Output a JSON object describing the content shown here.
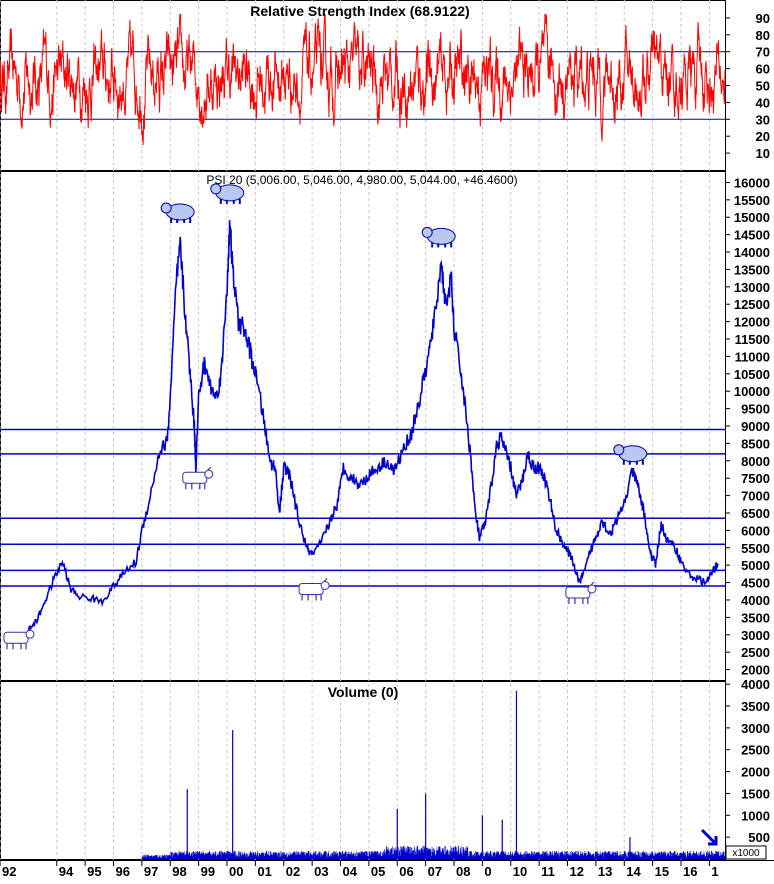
{
  "chart_data": [
    {
      "type": "line",
      "title": "Relative Strength Index (68.9122)",
      "y_ticks": [
        10,
        20,
        30,
        40,
        50,
        60,
        70,
        80,
        90
      ],
      "ylim": [
        0,
        100
      ],
      "reference_lines": [
        30,
        70
      ],
      "line_color": "#ff0000",
      "grid": "vertical dotted"
    },
    {
      "type": "line",
      "title": "PSI 20 (5,006.00, 5,046.00, 4,980.00, 5,044.00, +46.4600)",
      "y_ticks": [
        2000,
        2500,
        3000,
        3500,
        4000,
        4500,
        5000,
        5500,
        6000,
        6500,
        7000,
        7500,
        8000,
        8500,
        9000,
        9500,
        10000,
        10500,
        11000,
        11500,
        12000,
        12500,
        13000,
        13500,
        14000,
        14500,
        15000,
        15500,
        16000
      ],
      "ylim": [
        1700,
        16300
      ],
      "line_color": "#0000cc",
      "horizontal_levels": [
        8900,
        8200,
        6350,
        5600,
        4850,
        4400
      ],
      "series": [
        {
          "values": [
            [
              1993.0,
              3150
            ],
            [
              1993.3,
              3400
            ],
            [
              1993.6,
              4000
            ],
            [
              1993.9,
              4600
            ],
            [
              1994.2,
              5100
            ],
            [
              1994.5,
              4300
            ],
            [
              1994.8,
              4100
            ],
            [
              1995.2,
              4050
            ],
            [
              1995.6,
              3950
            ],
            [
              1996.0,
              4400
            ],
            [
              1996.4,
              4800
            ],
            [
              1996.8,
              5100
            ],
            [
              1997.0,
              6000
            ],
            [
              1997.3,
              7000
            ],
            [
              1997.6,
              8200
            ],
            [
              1997.9,
              8600
            ],
            [
              1998.0,
              9800
            ],
            [
              1998.2,
              13000
            ],
            [
              1998.35,
              14200
            ],
            [
              1998.5,
              12500
            ],
            [
              1998.7,
              10500
            ],
            [
              1998.85,
              9000
            ],
            [
              1998.9,
              7800
            ],
            [
              1999.0,
              9800
            ],
            [
              1999.2,
              10800
            ],
            [
              1999.4,
              10200
            ],
            [
              1999.6,
              9800
            ],
            [
              1999.8,
              10500
            ],
            [
              2000.0,
              13000
            ],
            [
              2000.1,
              14800
            ],
            [
              2000.2,
              13500
            ],
            [
              2000.4,
              12000
            ],
            [
              2000.6,
              11800
            ],
            [
              2000.8,
              11200
            ],
            [
              2001.0,
              10500
            ],
            [
              2001.3,
              9200
            ],
            [
              2001.5,
              8000
            ],
            [
              2001.7,
              7800
            ],
            [
              2001.85,
              6500
            ],
            [
              2002.0,
              7800
            ],
            [
              2002.2,
              7600
            ],
            [
              2002.5,
              6400
            ],
            [
              2002.8,
              5500
            ],
            [
              2003.0,
              5300
            ],
            [
              2003.3,
              5600
            ],
            [
              2003.6,
              6200
            ],
            [
              2003.9,
              6800
            ],
            [
              2004.1,
              7800
            ],
            [
              2004.4,
              7500
            ],
            [
              2004.7,
              7300
            ],
            [
              2005.0,
              7600
            ],
            [
              2005.3,
              7800
            ],
            [
              2005.6,
              8000
            ],
            [
              2005.9,
              7700
            ],
            [
              2006.2,
              8300
            ],
            [
              2006.5,
              8800
            ],
            [
              2006.8,
              9800
            ],
            [
              2007.1,
              11000
            ],
            [
              2007.3,
              12000
            ],
            [
              2007.55,
              13700
            ],
            [
              2007.7,
              12500
            ],
            [
              2007.9,
              13200
            ],
            [
              2008.0,
              11800
            ],
            [
              2008.2,
              10800
            ],
            [
              2008.4,
              9500
            ],
            [
              2008.6,
              8000
            ],
            [
              2008.75,
              6500
            ],
            [
              2008.9,
              5800
            ],
            [
              2009.1,
              6200
            ],
            [
              2009.3,
              7200
            ],
            [
              2009.5,
              8400
            ],
            [
              2009.65,
              8700
            ],
            [
              2009.8,
              8300
            ],
            [
              2010.0,
              7800
            ],
            [
              2010.2,
              7000
            ],
            [
              2010.4,
              7400
            ],
            [
              2010.6,
              8200
            ],
            [
              2010.8,
              7800
            ],
            [
              2011.0,
              7800
            ],
            [
              2011.2,
              7500
            ],
            [
              2011.4,
              6800
            ],
            [
              2011.6,
              6000
            ],
            [
              2011.8,
              5700
            ],
            [
              2012.0,
              5400
            ],
            [
              2012.2,
              5100
            ],
            [
              2012.4,
              4500
            ],
            [
              2012.6,
              4800
            ],
            [
              2012.8,
              5400
            ],
            [
              2013.0,
              5800
            ],
            [
              2013.2,
              6300
            ],
            [
              2013.5,
              5900
            ],
            [
              2013.7,
              6200
            ],
            [
              2014.0,
              6800
            ],
            [
              2014.3,
              7700
            ],
            [
              2014.5,
              7200
            ],
            [
              2014.7,
              6500
            ],
            [
              2014.9,
              5400
            ],
            [
              2015.1,
              5000
            ],
            [
              2015.3,
              6200
            ],
            [
              2015.5,
              5700
            ],
            [
              2015.8,
              5500
            ],
            [
              2016.0,
              5100
            ],
            [
              2016.3,
              4700
            ],
            [
              2016.6,
              4600
            ],
            [
              2016.9,
              4500
            ],
            [
              2017.1,
              4800
            ],
            [
              2017.3,
              5044
            ]
          ]
        }
      ],
      "markers": [
        {
          "icon": "bull-icon",
          "x": 1992.6,
          "y": 2900
        },
        {
          "icon": "bear-icon",
          "x": 1998.35,
          "y": 15150
        },
        {
          "icon": "bear-icon",
          "x": 2000.1,
          "y": 15700
        },
        {
          "icon": "bull-icon",
          "x": 1998.9,
          "y": 7500
        },
        {
          "icon": "bull-icon",
          "x": 2003.0,
          "y": 4300
        },
        {
          "icon": "bear-icon",
          "x": 2007.55,
          "y": 14450
        },
        {
          "icon": "bull-icon",
          "x": 2012.4,
          "y": 4200
        },
        {
          "icon": "bear-icon",
          "x": 2014.3,
          "y": 8200
        }
      ]
    },
    {
      "type": "bar",
      "title": "Volume (0)",
      "y_ticks": [
        500,
        1000,
        1500,
        2000,
        2500,
        3000,
        3500,
        4000
      ],
      "ylim": [
        0,
        4050
      ],
      "bar_color": "#0000cc",
      "scale_label": "x1000",
      "spikes": [
        {
          "x": 1998.6,
          "value": 1600
        },
        {
          "x": 2000.2,
          "value": 2950
        },
        {
          "x": 2006.0,
          "value": 1150
        },
        {
          "x": 2007.0,
          "value": 1500
        },
        {
          "x": 2009.0,
          "value": 1000
        },
        {
          "x": 2009.7,
          "value": 900
        },
        {
          "x": 2010.2,
          "value": 3850
        },
        {
          "x": 2014.2,
          "value": 500
        }
      ]
    }
  ],
  "x_axis": {
    "labels": [
      "92",
      "94",
      "95",
      "96",
      "97",
      "98",
      "99",
      "00",
      "01",
      "02",
      "03",
      "04",
      "05",
      "06",
      "07",
      "08",
      "0",
      "10",
      "11",
      "12",
      "13",
      "14",
      "15",
      "16",
      "1"
    ],
    "label_years": [
      1992,
      1994,
      1995,
      1996,
      1997,
      1998,
      1999,
      2000,
      2001,
      2002,
      2003,
      2004,
      2005,
      2006,
      2007,
      2008,
      2009,
      2010,
      2011,
      2012,
      2013,
      2014,
      2015,
      2016,
      2017
    ]
  },
  "colors": {
    "rsi": "#ff0000",
    "price": "#0000cc",
    "volume": "#0000cc",
    "level": "#0000cc"
  }
}
